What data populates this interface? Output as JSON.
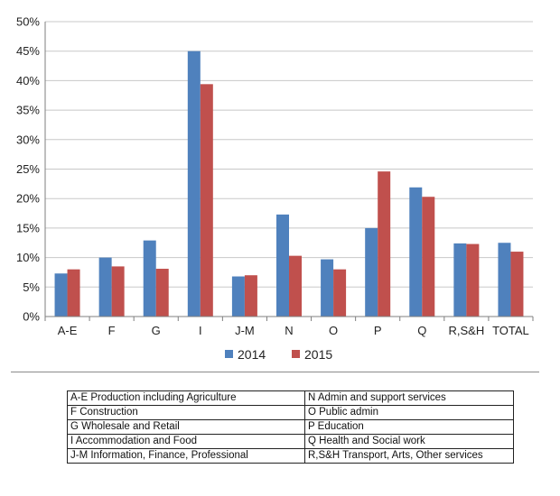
{
  "chart_data": {
    "type": "bar",
    "categories": [
      "A-E",
      "F",
      "G",
      "I",
      "J-M",
      "N",
      "O",
      "P",
      "Q",
      "R,S&H",
      "TOTAL"
    ],
    "series": [
      {
        "name": "2014",
        "color": "#4f81bd",
        "values": [
          7.3,
          10.0,
          12.9,
          45.0,
          6.8,
          17.3,
          9.7,
          15.0,
          21.9,
          12.4,
          12.5
        ]
      },
      {
        "name": "2015",
        "color": "#c0504d",
        "values": [
          8.0,
          8.5,
          8.1,
          39.4,
          7.0,
          10.3,
          8.0,
          24.6,
          20.3,
          12.3,
          11.0
        ]
      }
    ],
    "ylim": [
      0,
      50
    ],
    "yticks": [
      "0%",
      "5%",
      "10%",
      "15%",
      "20%",
      "25%",
      "30%",
      "35%",
      "40%",
      "45%",
      "50%"
    ],
    "y_tick_step": 5,
    "grid": true,
    "legend": "bottom"
  },
  "key_table": {
    "rows": [
      [
        "A-E Production including Agriculture",
        "N Admin and support services"
      ],
      [
        "F Construction",
        "O Public admin"
      ],
      [
        "G Wholesale and Retail",
        "P Education"
      ],
      [
        "I Accommodation and Food",
        "Q Health and Social work"
      ],
      [
        "J-M Information, Finance,  Professional",
        "R,S&H Transport, Arts, Other services"
      ]
    ]
  }
}
